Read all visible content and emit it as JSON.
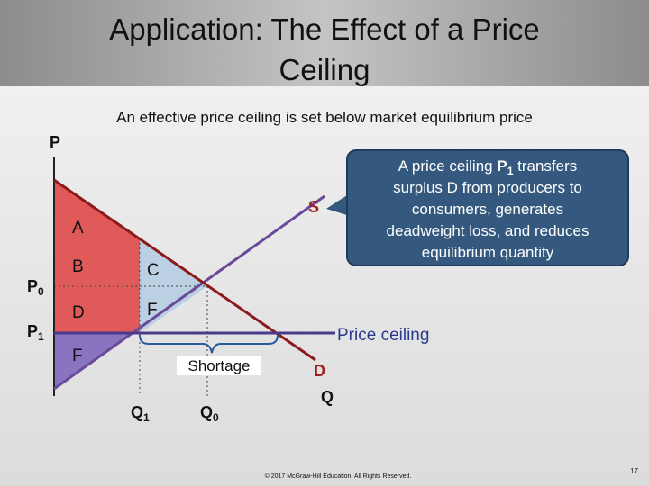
{
  "header": {
    "title_lines": [
      "Application: The Effect of a Price",
      "Ceiling"
    ]
  },
  "subtitle": "An effective price ceiling is set below market equilibrium price",
  "axes": {
    "y": "P",
    "x": "Q"
  },
  "curves": {
    "supply": "S",
    "demand": "D"
  },
  "areas": {
    "a": "A",
    "b": "B",
    "c": "C",
    "d": "D",
    "f_upper": "F",
    "f_lower": "F"
  },
  "prices": [
    {
      "base": "P",
      "sub": "0"
    },
    {
      "base": "P",
      "sub": "1"
    }
  ],
  "quantities": [
    {
      "base": "Q",
      "sub": "1"
    },
    {
      "base": "Q",
      "sub": "0"
    }
  ],
  "price_ceiling": "Price ceiling",
  "shortage": "Shortage",
  "callout": {
    "before": "A price ceiling",
    "price": "P",
    "price_sub": "1",
    "after": "transfers",
    "lines": [
      "surplus D from producers to",
      "consumers, generates",
      "deadweight loss, and reduces",
      "equilibrium quantity"
    ]
  },
  "footer": {
    "copyright": "© 2017 McGraw-Hill Education. All Rights Reserved.",
    "page": "17"
  }
}
